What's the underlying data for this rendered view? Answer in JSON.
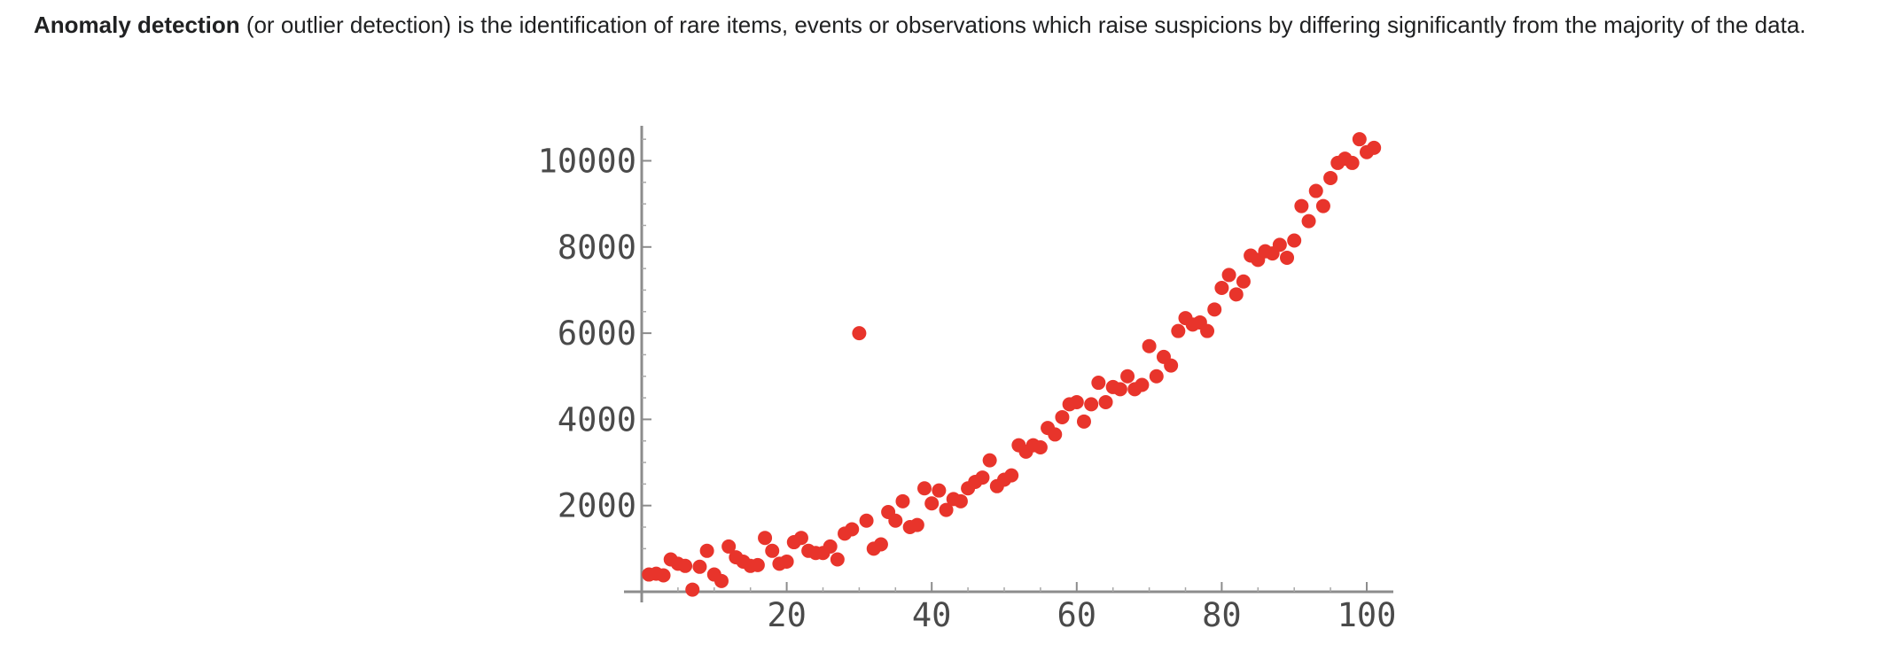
{
  "intro": {
    "term": "Anomaly detection",
    "text": " (or outlier detection) is the identification of rare items, events or observations which raise suspicions by differing significantly from the majority of the data."
  },
  "colors": {
    "point": "#e8342b",
    "axis": "#8c8c8c",
    "text": "#202122"
  },
  "chart_data": {
    "type": "scatter",
    "title": "",
    "xlabel": "",
    "ylabel": "",
    "xlim": [
      0,
      103
    ],
    "ylim": [
      0,
      10800
    ],
    "xticks": [
      20,
      40,
      60,
      80,
      100
    ],
    "yticks": [
      2000,
      4000,
      6000,
      8000,
      10000
    ],
    "grid": false,
    "series": [
      {
        "points": [
          [
            1,
            400
          ],
          [
            2,
            420
          ],
          [
            3,
            380
          ],
          [
            4,
            750
          ],
          [
            5,
            650
          ],
          [
            6,
            600
          ],
          [
            7,
            50
          ],
          [
            8,
            580
          ],
          [
            9,
            950
          ],
          [
            10,
            400
          ],
          [
            11,
            250
          ],
          [
            12,
            1050
          ],
          [
            13,
            800
          ],
          [
            14,
            700
          ],
          [
            15,
            600
          ],
          [
            16,
            620
          ],
          [
            17,
            1250
          ],
          [
            18,
            950
          ],
          [
            19,
            650
          ],
          [
            20,
            700
          ],
          [
            21,
            1150
          ],
          [
            22,
            1250
          ],
          [
            23,
            950
          ],
          [
            24,
            900
          ],
          [
            25,
            900
          ],
          [
            26,
            1050
          ],
          [
            27,
            750
          ],
          [
            28,
            1350
          ],
          [
            29,
            1450
          ],
          [
            30,
            6000
          ],
          [
            31,
            1650
          ],
          [
            32,
            1000
          ],
          [
            33,
            1100
          ],
          [
            34,
            1850
          ],
          [
            35,
            1650
          ],
          [
            36,
            2100
          ],
          [
            37,
            1500
          ],
          [
            38,
            1550
          ],
          [
            39,
            2400
          ],
          [
            40,
            2050
          ],
          [
            41,
            2350
          ],
          [
            42,
            1900
          ],
          [
            43,
            2150
          ],
          [
            44,
            2100
          ],
          [
            45,
            2400
          ],
          [
            46,
            2550
          ],
          [
            47,
            2650
          ],
          [
            48,
            3050
          ],
          [
            49,
            2450
          ],
          [
            50,
            2600
          ],
          [
            51,
            2700
          ],
          [
            52,
            3400
          ],
          [
            53,
            3250
          ],
          [
            54,
            3400
          ],
          [
            55,
            3350
          ],
          [
            56,
            3800
          ],
          [
            57,
            3650
          ],
          [
            58,
            4050
          ],
          [
            59,
            4350
          ],
          [
            60,
            4400
          ],
          [
            61,
            3950
          ],
          [
            62,
            4350
          ],
          [
            63,
            4850
          ],
          [
            64,
            4400
          ],
          [
            65,
            4750
          ],
          [
            66,
            4700
          ],
          [
            67,
            5000
          ],
          [
            68,
            4700
          ],
          [
            69,
            4800
          ],
          [
            70,
            5700
          ],
          [
            71,
            5000
          ],
          [
            72,
            5450
          ],
          [
            73,
            5250
          ],
          [
            74,
            6050
          ],
          [
            75,
            6350
          ],
          [
            76,
            6200
          ],
          [
            77,
            6250
          ],
          [
            78,
            6050
          ],
          [
            79,
            6550
          ],
          [
            80,
            7050
          ],
          [
            81,
            7350
          ],
          [
            82,
            6900
          ],
          [
            83,
            7200
          ],
          [
            84,
            7800
          ],
          [
            85,
            7700
          ],
          [
            86,
            7900
          ],
          [
            87,
            7850
          ],
          [
            88,
            8050
          ],
          [
            89,
            7750
          ],
          [
            90,
            8150
          ],
          [
            91,
            8950
          ],
          [
            92,
            8600
          ],
          [
            93,
            9300
          ],
          [
            94,
            8950
          ],
          [
            95,
            9600
          ],
          [
            96,
            9950
          ],
          [
            97,
            10050
          ],
          [
            98,
            9950
          ],
          [
            99,
            10500
          ],
          [
            100,
            10200
          ],
          [
            101,
            10300
          ]
        ]
      }
    ]
  }
}
